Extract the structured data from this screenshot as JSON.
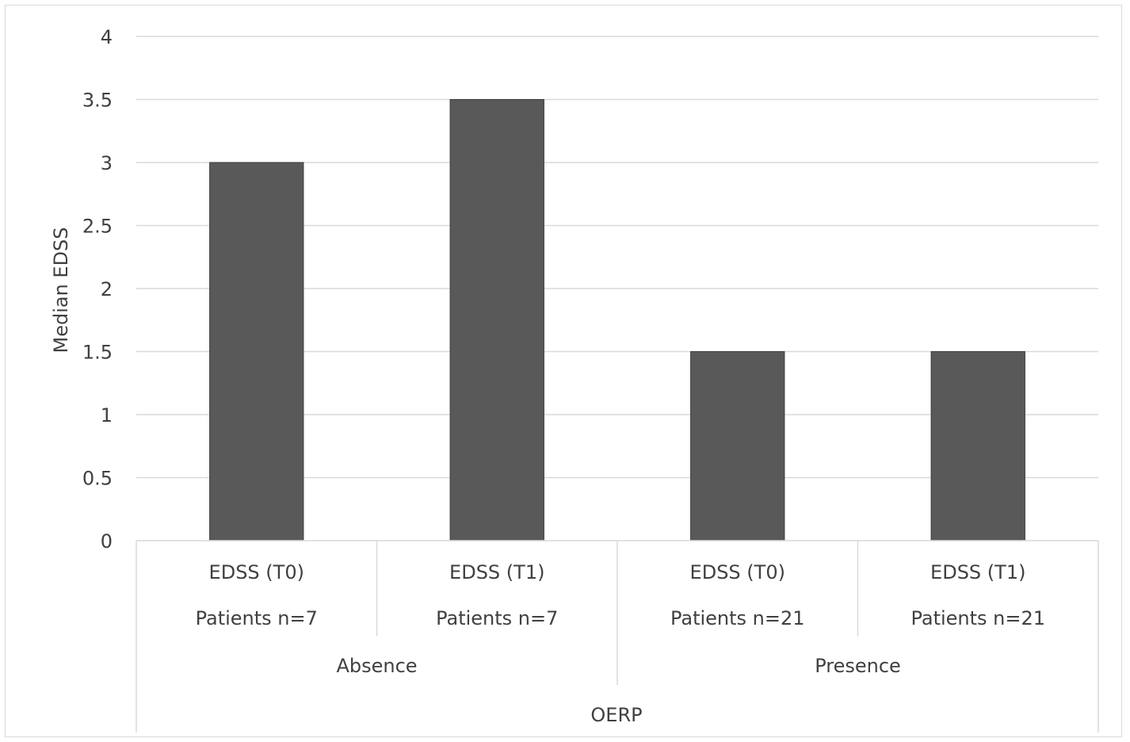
{
  "chart_data": {
    "type": "bar",
    "ylabel": "Median EDSS",
    "xlabel": "OERP",
    "ylim": [
      0,
      4
    ],
    "yticks": [
      "0",
      "0.5",
      "1",
      "1.5",
      "2",
      "2.5",
      "3",
      "3.5",
      "4"
    ],
    "grid": true,
    "bar_color": "#595959",
    "categories": [
      {
        "label": "EDSS (T0)",
        "sublabel": "Patients n=7",
        "group": "Absence",
        "value": 3
      },
      {
        "label": "EDSS (T1)",
        "sublabel": "Patients n=7",
        "group": "Absence",
        "value": 3.5
      },
      {
        "label": "EDSS (T0)",
        "sublabel": "Patients n=21",
        "group": "Presence",
        "value": 1.5
      },
      {
        "label": "EDSS (T1)",
        "sublabel": "Patients n=21",
        "group": "Presence",
        "value": 1.5
      }
    ],
    "groups": [
      "Absence",
      "Presence"
    ]
  }
}
